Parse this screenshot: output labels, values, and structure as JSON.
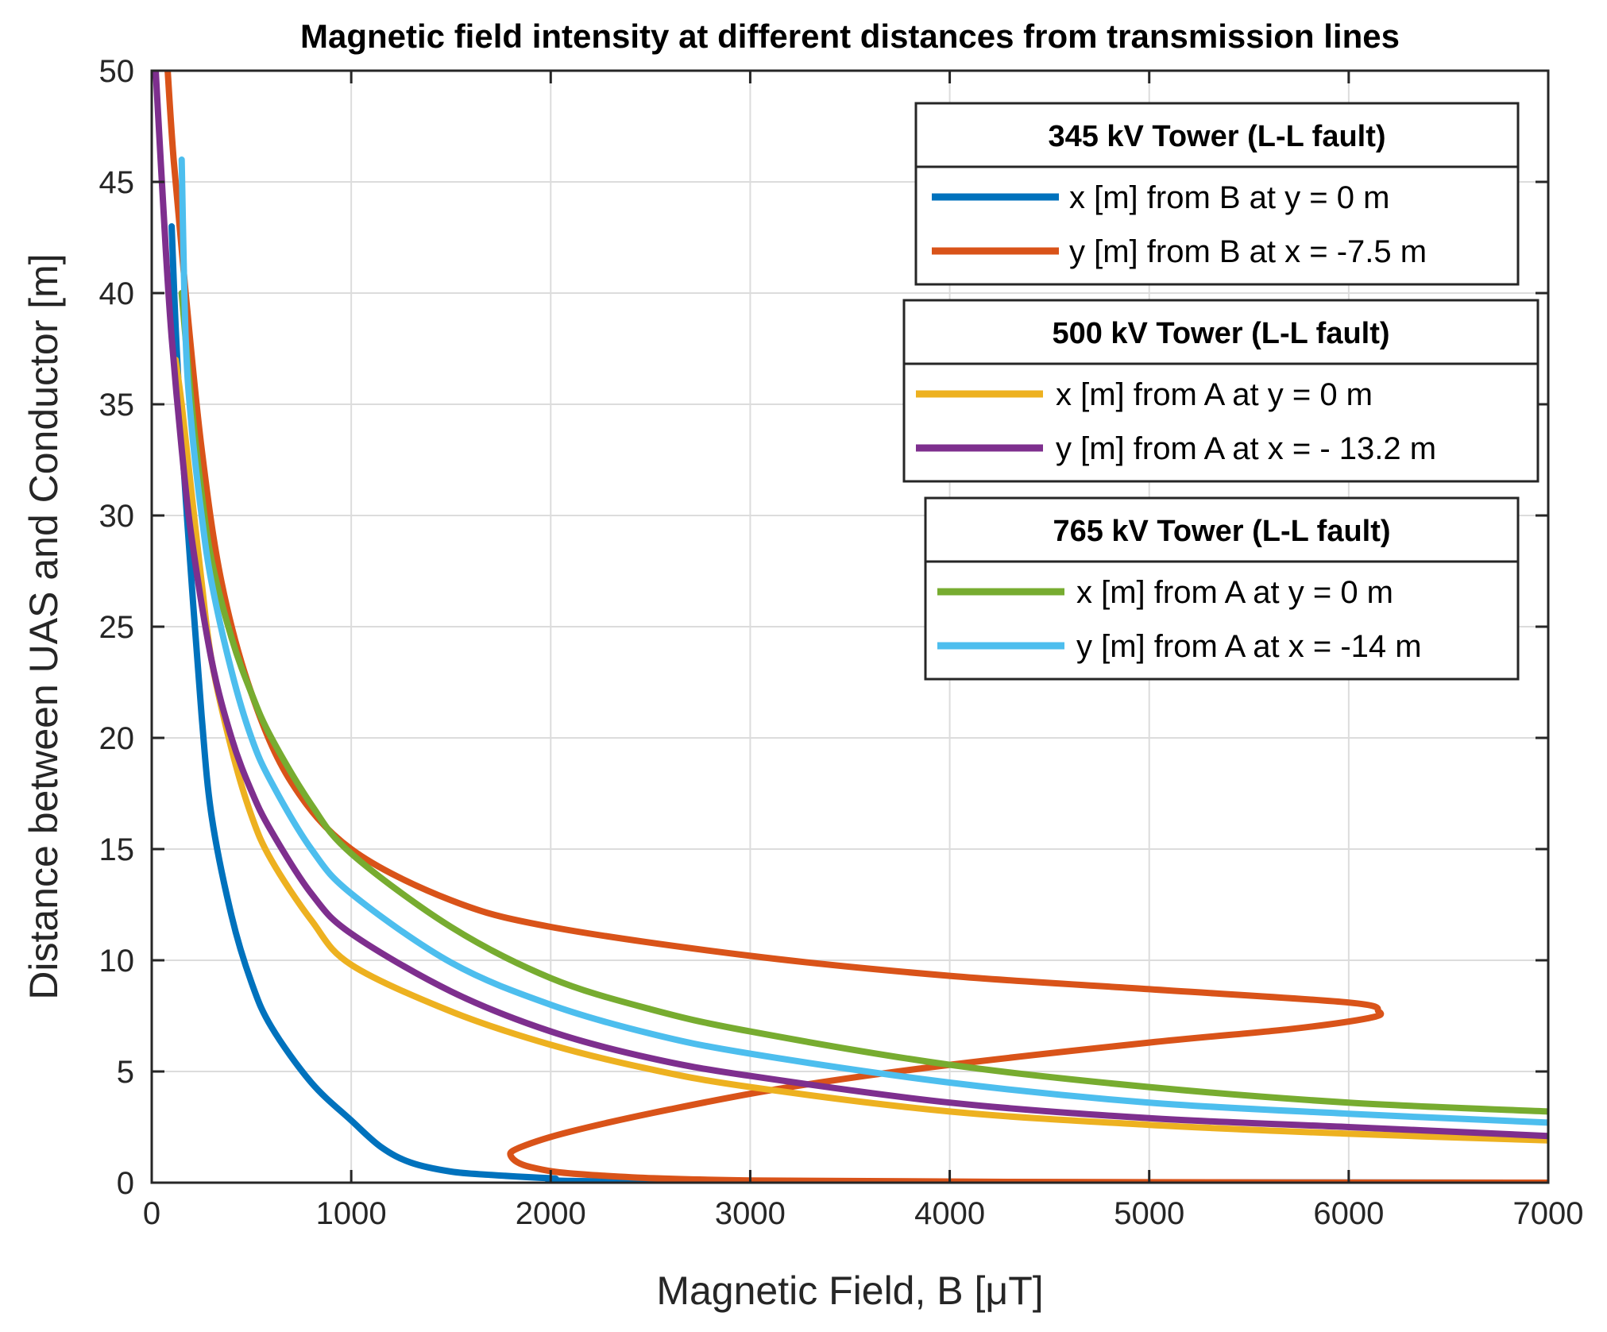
{
  "chart_data": {
    "type": "line",
    "title": "Magnetic field intensity at different distances from transmission lines",
    "xlabel": "Magnetic Field, B [μT]",
    "ylabel": "Distance between UAS and Conductor [m]",
    "xlim": [
      0,
      7000
    ],
    "ylim": [
      0,
      50
    ],
    "xticks": [
      0,
      1000,
      2000,
      3000,
      4000,
      5000,
      6000,
      7000
    ],
    "yticks": [
      0,
      5,
      10,
      15,
      20,
      25,
      30,
      35,
      40,
      45,
      50
    ],
    "xtick_labels": [
      "0",
      "1000",
      "2000",
      "3000",
      "4000",
      "5000",
      "6000",
      "7000"
    ],
    "ytick_labels": [
      "0",
      "5",
      "10",
      "15",
      "20",
      "25",
      "30",
      "35",
      "40",
      "45",
      "50"
    ],
    "grid": true,
    "legends": [
      {
        "title": "345 kV Tower (L-L fault)",
        "placement": "top-right",
        "entries": [
          {
            "label": "x [m] from B at y = 0 m",
            "color": "#0072BD"
          },
          {
            "label": "y [m] from B at x = -7.5 m",
            "color": "#D95319"
          }
        ]
      },
      {
        "title": "500 kV Tower (L-L fault)",
        "placement": "right",
        "entries": [
          {
            "label": "x [m] from A at y = 0 m",
            "color": "#EDB120"
          },
          {
            "label": "y [m] from A at x = - 13.2 m",
            "color": "#7E2F8E"
          }
        ]
      },
      {
        "title": "765 kV Tower (L-L fault)",
        "placement": "right",
        "entries": [
          {
            "label": "x [m] from A at y = 0 m",
            "color": "#77AC30"
          },
          {
            "label": "y [m] from A at x = -14 m",
            "color": "#4DBEEE"
          }
        ]
      }
    ],
    "series": [
      {
        "name": "345 kV x [m] from B at y = 0 m",
        "color": "#0072BD",
        "points": [
          [
            7000,
            0
          ],
          [
            2500,
            0.05
          ],
          [
            2000,
            0.2
          ],
          [
            1700,
            0.35
          ],
          [
            1500,
            0.5
          ],
          [
            1300,
            0.9
          ],
          [
            1150,
            1.6
          ],
          [
            1000,
            2.8
          ],
          [
            800,
            4.5
          ],
          [
            600,
            7.0
          ],
          [
            500,
            9.0
          ],
          [
            400,
            12.0
          ],
          [
            300,
            16.5
          ],
          [
            250,
            21.0
          ],
          [
            200,
            27.0
          ],
          [
            150,
            33.5
          ],
          [
            120,
            38.5
          ],
          [
            100,
            43.0
          ]
        ]
      },
      {
        "name": "345 kV y [m] from B at x = -7.5 m",
        "color": "#D95319",
        "points": [
          [
            7000,
            0
          ],
          [
            5000,
            0.02
          ],
          [
            3000,
            0.1
          ],
          [
            2200,
            0.35
          ],
          [
            1900,
            0.7
          ],
          [
            1800,
            1.2
          ],
          [
            1850,
            1.6
          ],
          [
            2100,
            2.3
          ],
          [
            2600,
            3.3
          ],
          [
            3200,
            4.3
          ],
          [
            4000,
            5.3
          ],
          [
            5000,
            6.3
          ],
          [
            5700,
            6.9
          ],
          [
            6100,
            7.4
          ],
          [
            6150,
            7.7
          ],
          [
            6000,
            8.1
          ],
          [
            5000,
            8.7
          ],
          [
            4000,
            9.3
          ],
          [
            3000,
            10.2
          ],
          [
            2000,
            11.5
          ],
          [
            1500,
            12.7
          ],
          [
            1000,
            15.0
          ],
          [
            700,
            18.0
          ],
          [
            500,
            22.0
          ],
          [
            350,
            27.0
          ],
          [
            250,
            33.0
          ],
          [
            170,
            40.0
          ],
          [
            110,
            46.0
          ],
          [
            80,
            50.0
          ]
        ]
      },
      {
        "name": "500 kV x [m] from A at y = 0 m",
        "color": "#EDB120",
        "points": [
          [
            7000,
            1.9
          ],
          [
            6000,
            2.2
          ],
          [
            5000,
            2.6
          ],
          [
            4000,
            3.2
          ],
          [
            3000,
            4.3
          ],
          [
            2500,
            5.1
          ],
          [
            2000,
            6.2
          ],
          [
            1500,
            7.7
          ],
          [
            1000,
            9.8
          ],
          [
            800,
            11.8
          ],
          [
            600,
            14.5
          ],
          [
            500,
            16.5
          ],
          [
            400,
            19.5
          ],
          [
            300,
            23.5
          ],
          [
            250,
            27.0
          ],
          [
            200,
            31.0
          ],
          [
            150,
            35.0
          ],
          [
            120,
            37.0
          ]
        ]
      },
      {
        "name": "500 kV y [m] from A at x = - 13.2 m",
        "color": "#7E2F8E",
        "points": [
          [
            7000,
            2.1
          ],
          [
            6000,
            2.5
          ],
          [
            5000,
            2.9
          ],
          [
            4000,
            3.6
          ],
          [
            3000,
            4.8
          ],
          [
            2500,
            5.6
          ],
          [
            2000,
            6.8
          ],
          [
            1500,
            8.6
          ],
          [
            1000,
            11.2
          ],
          [
            800,
            13.0
          ],
          [
            600,
            15.8
          ],
          [
            500,
            17.6
          ],
          [
            400,
            20.0
          ],
          [
            300,
            23.5
          ],
          [
            200,
            29.0
          ],
          [
            150,
            33.0
          ],
          [
            100,
            38.0
          ],
          [
            70,
            42.0
          ],
          [
            20,
            50.0
          ]
        ]
      },
      {
        "name": "765 kV x [m] from A at y = 0 m",
        "color": "#77AC30",
        "points": [
          [
            7000,
            3.2
          ],
          [
            6000,
            3.6
          ],
          [
            5000,
            4.3
          ],
          [
            4000,
            5.3
          ],
          [
            3000,
            6.8
          ],
          [
            2500,
            7.8
          ],
          [
            2000,
            9.2
          ],
          [
            1500,
            11.5
          ],
          [
            1000,
            14.8
          ],
          [
            800,
            17.0
          ],
          [
            600,
            20.0
          ],
          [
            500,
            22.0
          ],
          [
            400,
            24.5
          ],
          [
            300,
            28.0
          ],
          [
            250,
            31.0
          ],
          [
            200,
            35.0
          ],
          [
            150,
            40.0
          ]
        ]
      },
      {
        "name": "765 kV y [m] from A at x = -14 m",
        "color": "#4DBEEE",
        "points": [
          [
            7000,
            2.7
          ],
          [
            6000,
            3.1
          ],
          [
            5000,
            3.6
          ],
          [
            4000,
            4.5
          ],
          [
            3000,
            5.8
          ],
          [
            2500,
            6.7
          ],
          [
            2000,
            8.0
          ],
          [
            1500,
            9.9
          ],
          [
            1000,
            13.0
          ],
          [
            800,
            15.0
          ],
          [
            600,
            18.0
          ],
          [
            500,
            20.0
          ],
          [
            400,
            23.0
          ],
          [
            300,
            27.0
          ],
          [
            250,
            30.0
          ],
          [
            200,
            34.0
          ],
          [
            170,
            38.0
          ],
          [
            150,
            46.0
          ]
        ]
      }
    ]
  }
}
